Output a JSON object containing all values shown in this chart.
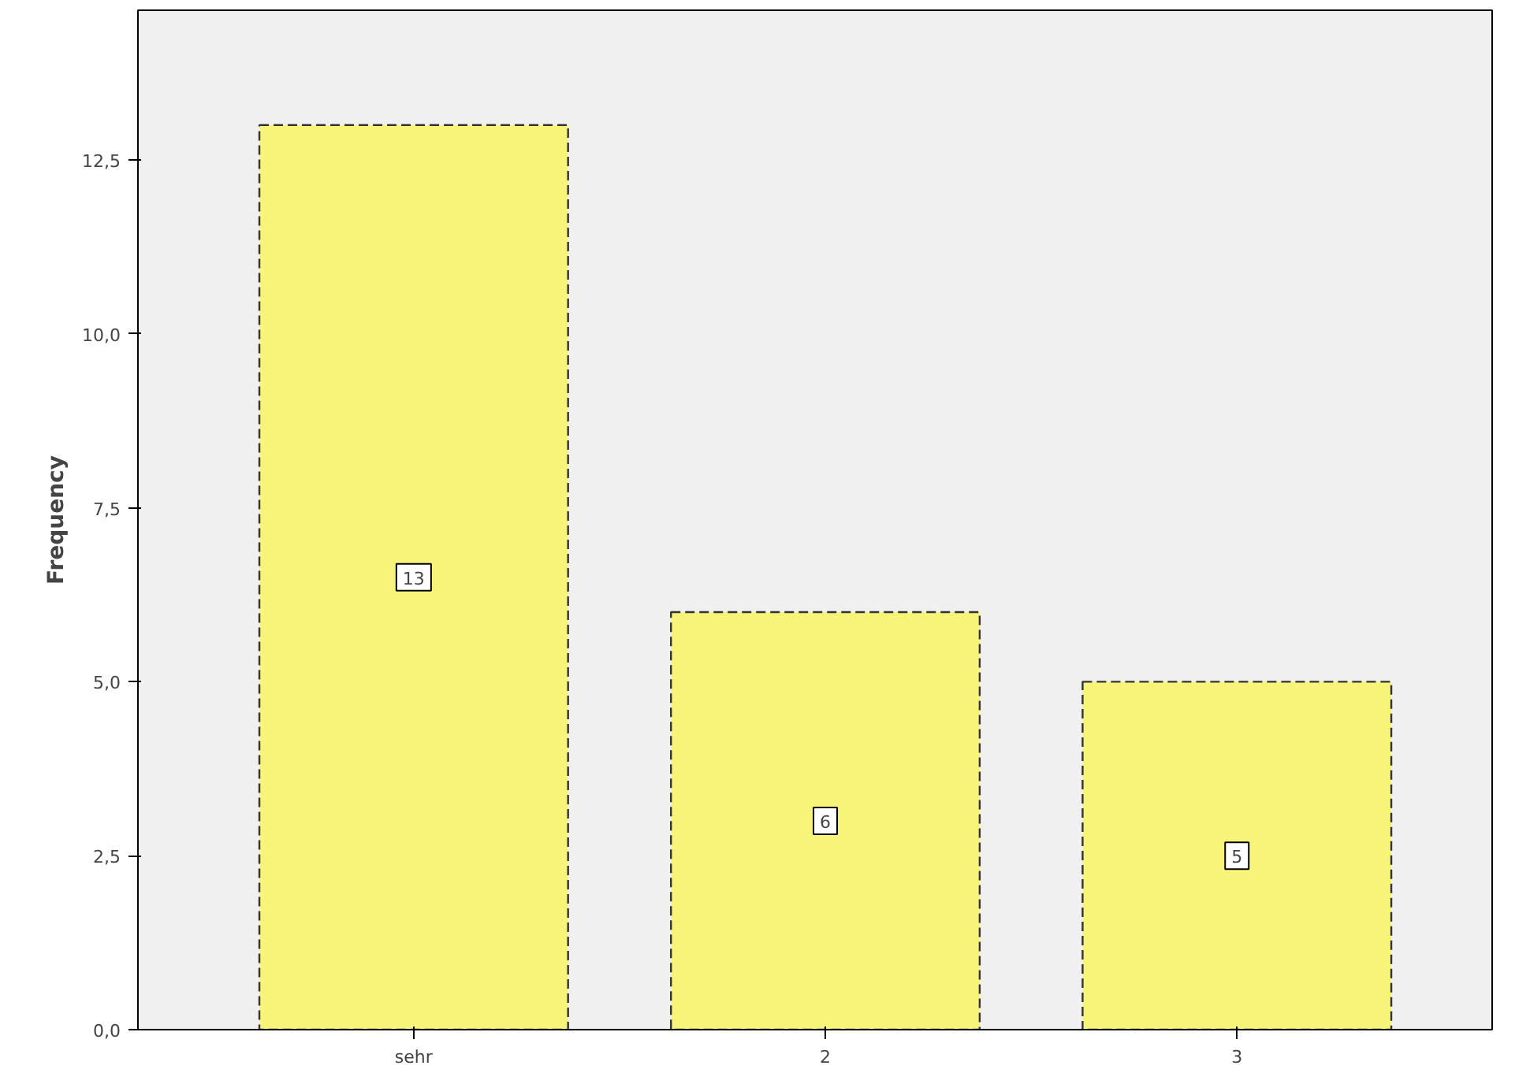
{
  "chart_data": {
    "type": "bar",
    "ylabel": "Frequency",
    "categories": [
      "sehr",
      "2",
      "3"
    ],
    "values": [
      13,
      6,
      5
    ],
    "color": "#f8f47a",
    "line_style": "dashed",
    "data_labels": true,
    "grid": false,
    "ylim": [
      0,
      14.65
    ],
    "yticks": [
      {
        "value": 0,
        "label": "0,0"
      },
      {
        "value": 2.5,
        "label": "2,5"
      },
      {
        "value": 5,
        "label": "5,0"
      },
      {
        "value": 7.5,
        "label": "7,5"
      },
      {
        "value": 10,
        "label": "10,0"
      },
      {
        "value": 12.5,
        "label": "12,5"
      }
    ]
  }
}
